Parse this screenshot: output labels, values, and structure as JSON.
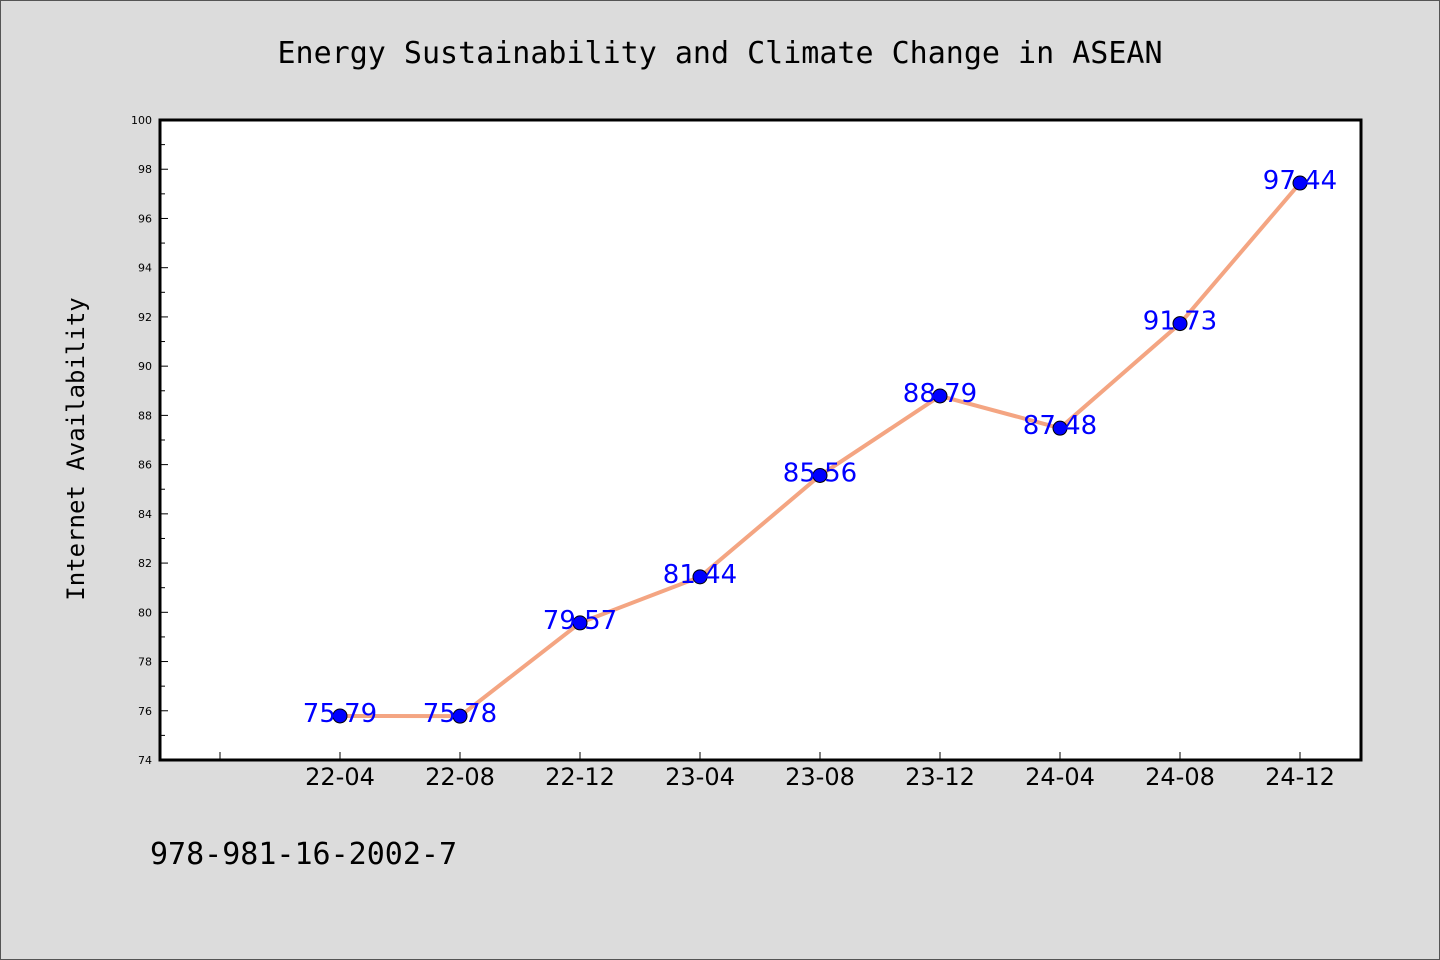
{
  "chart_data": {
    "type": "line",
    "title": "Energy Sustainability and Climate Change in ASEAN",
    "xlabel": "",
    "ylabel": "Internet Availability",
    "categories": [
      "22-04",
      "22-08",
      "22-12",
      "23-04",
      "23-08",
      "23-12",
      "24-04",
      "24-08",
      "24-12"
    ],
    "series": [
      {
        "values": [
          75.79,
          75.78,
          79.57,
          81.44,
          85.56,
          88.79,
          87.48,
          91.73,
          97.44
        ]
      }
    ],
    "data_labels": [
      "75.79",
      "75.78",
      "79.57",
      "81.44",
      "85.56",
      "88.79",
      "87.48",
      "91.73",
      "97.44"
    ],
    "ylim": [
      74,
      100
    ],
    "yticks": [
      "74",
      "76",
      "78",
      "80",
      "82",
      "84",
      "86",
      "88",
      "90",
      "92",
      "94",
      "96",
      "98",
      "100"
    ],
    "grid": false,
    "legend": "none",
    "colors": {
      "line": "#f4a582",
      "marker": "#0000ff",
      "label": "#0000ff",
      "background": "#dcdcdc",
      "plot_background": "#ffffff"
    }
  },
  "footer": {
    "code": "978-981-16-2002-7"
  }
}
